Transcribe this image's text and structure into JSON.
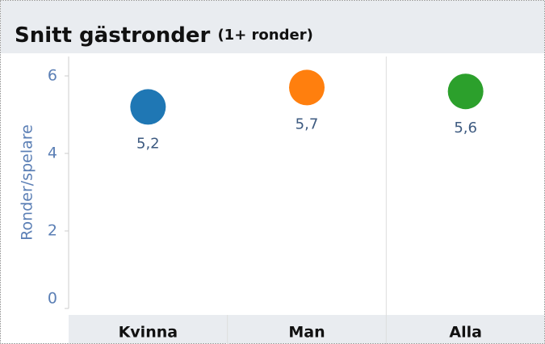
{
  "chart_data": {
    "type": "dot",
    "title": "Snitt gästronder",
    "subtitle": "(1+ ronder)",
    "y_label": "Ronder/spelare",
    "categories": [
      "Kvinna",
      "Man",
      "Alla"
    ],
    "values": [
      5.2,
      5.7,
      5.6
    ],
    "value_labels": [
      "5,2",
      "5,7",
      "5,6"
    ],
    "colors": [
      "#1f77b4",
      "#ff7f0e",
      "#2ca02c"
    ],
    "ylim": [
      0,
      6.5
    ],
    "yticks": [
      0,
      2,
      4,
      6
    ]
  }
}
